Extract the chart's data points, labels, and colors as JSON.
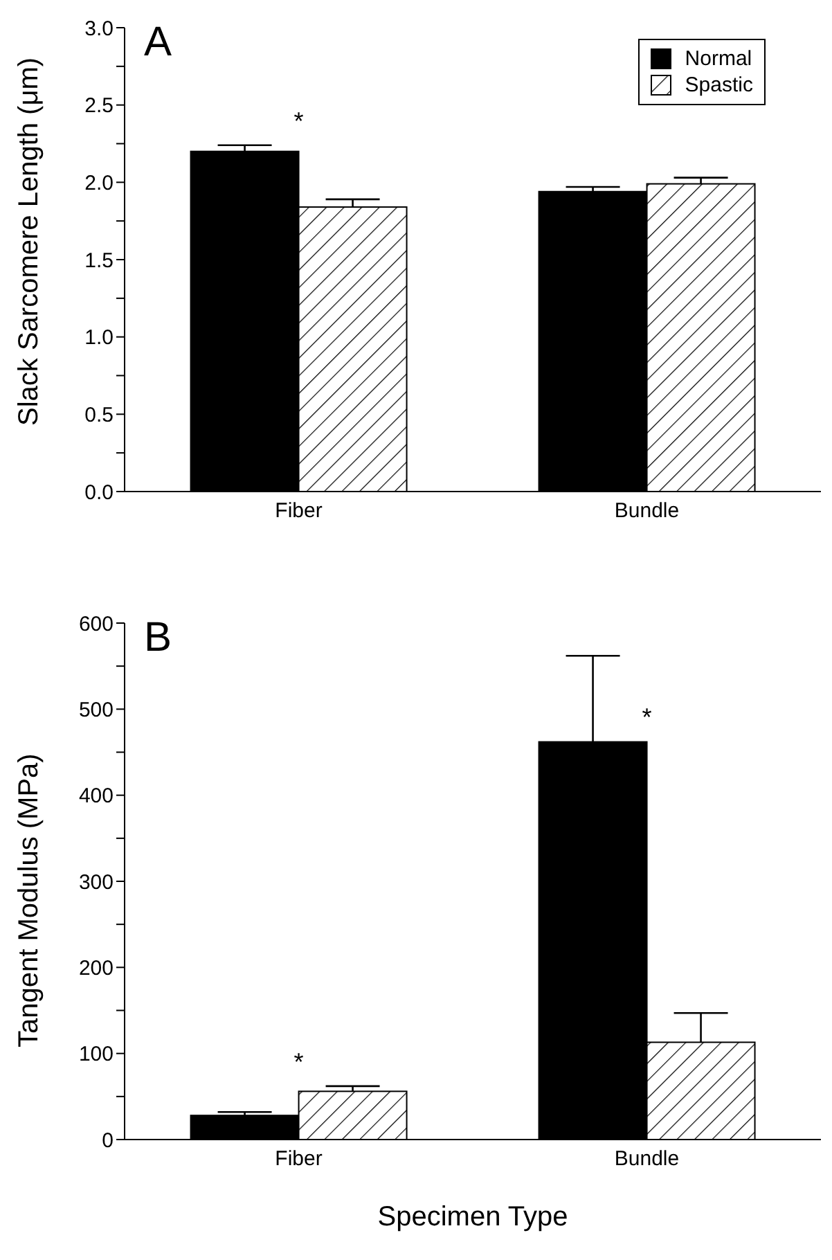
{
  "chart_data": [
    {
      "type": "bar",
      "title": "A",
      "ylabel": "Slack Sarcomere Length (μm)",
      "categories": [
        "Fiber",
        "Bundle"
      ],
      "series": [
        {
          "name": "Normal",
          "color": "#000000",
          "values": [
            2.2,
            1.94
          ],
          "errors": [
            [
              2.2,
              2.24
            ],
            [
              1.94,
              1.97
            ]
          ]
        },
        {
          "name": "Spastic",
          "color": "#000000",
          "values": [
            1.84,
            1.99
          ],
          "errors": [
            [
              1.84,
              1.89
            ],
            [
              1.99,
              2.03
            ]
          ]
        }
      ],
      "ylim": [
        0,
        3.0
      ],
      "yticks": [
        {
          "value": 0,
          "label": "0.0"
        },
        {
          "value": 0.25,
          "label": null
        },
        {
          "value": 0.5,
          "label": "0.5"
        },
        {
          "value": 0.75,
          "label": null
        },
        {
          "value": 1.0,
          "label": "1.0"
        },
        {
          "value": 1.25,
          "label": null
        },
        {
          "value": 1.5,
          "label": "1.5"
        },
        {
          "value": 1.75,
          "label": null
        },
        {
          "value": 2.0,
          "label": "2.0"
        },
        {
          "value": 2.25,
          "label": null
        },
        {
          "value": 2.5,
          "label": "2.5"
        },
        {
          "value": 2.75,
          "label": null
        },
        {
          "value": 3.0,
          "label": "3.0"
        }
      ],
      "annotations": [
        {
          "text": "*",
          "x": "Fiber",
          "y": 2.24
        }
      ],
      "legend": "top right",
      "grid": false
    },
    {
      "type": "bar",
      "title": "B",
      "ylabel": "Tangent Modulus (MPa)",
      "xlabel": "Specimen Type",
      "categories": [
        "Fiber",
        "Bundle"
      ],
      "series": [
        {
          "color": "#000000",
          "values": [
            28,
            462
          ],
          "errors": [
            [
              28,
              32
            ],
            [
              462,
              562
            ]
          ]
        },
        {
          "color": "#000000",
          "values": [
            56,
            113
          ],
          "errors": [
            [
              56,
              62
            ],
            [
              113,
              147
            ]
          ]
        }
      ],
      "ylim": [
        0,
        600
      ],
      "yticks": [
        0,
        {
          "value": 50,
          "label": null
        },
        100,
        {
          "value": 150,
          "label": null
        },
        200,
        {
          "value": 250,
          "label": null
        },
        300,
        {
          "value": 350,
          "label": null
        },
        400,
        {
          "value": 450,
          "label": null
        },
        500,
        {
          "value": 550,
          "label": null
        },
        600
      ],
      "annotations": [
        {
          "text": "*",
          "x": "Fiber",
          "y": 62
        },
        {
          "text": "*",
          "x": "Bundle",
          "y": 462
        }
      ],
      "legend": false,
      "grid": false
    }
  ]
}
